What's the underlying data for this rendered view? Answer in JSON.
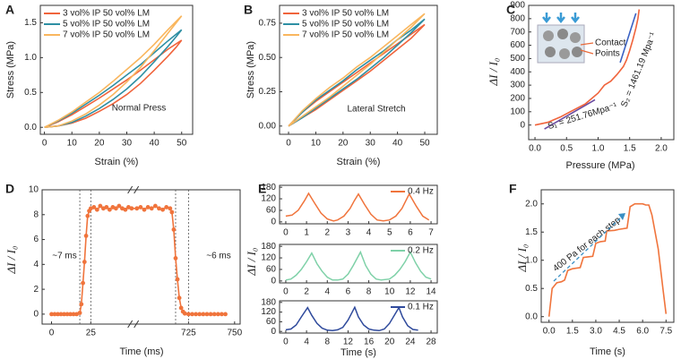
{
  "chart_data": [
    {
      "type": "line",
      "panel": "A",
      "xlabel": "Strain (%)",
      "ylabel": "Stress (MPa)",
      "x": [
        0,
        5,
        10,
        15,
        20,
        25,
        30,
        35,
        40,
        45,
        50,
        48,
        45,
        40,
        35,
        30,
        25,
        20,
        15,
        10,
        5,
        0
      ],
      "series": [
        {
          "name": "3 vol% IP  50 vol% LM",
          "color": "#f0643c",
          "values": [
            0,
            0.08,
            0.18,
            0.3,
            0.42,
            0.55,
            0.68,
            0.82,
            0.97,
            1.12,
            1.25,
            1.15,
            1.02,
            0.82,
            0.63,
            0.47,
            0.34,
            0.23,
            0.13,
            0.06,
            0.02,
            0
          ]
        },
        {
          "name": "5 vol% IP  50 vol% LM",
          "color": "#2e8fa3",
          "values": [
            0,
            0.09,
            0.2,
            0.33,
            0.46,
            0.6,
            0.75,
            0.9,
            1.07,
            1.24,
            1.4,
            1.3,
            1.16,
            0.94,
            0.73,
            0.55,
            0.4,
            0.27,
            0.16,
            0.07,
            0.02,
            0
          ]
        },
        {
          "name": "7 vol% IP  50 vol% LM",
          "color": "#f9b65e",
          "values": [
            0,
            0.1,
            0.22,
            0.36,
            0.5,
            0.66,
            0.83,
            1.0,
            1.19,
            1.4,
            1.6,
            1.5,
            1.35,
            1.1,
            0.86,
            0.65,
            0.47,
            0.32,
            0.19,
            0.09,
            0.02,
            0
          ]
        }
      ],
      "annotations": [
        {
          "text": "Normal Press",
          "color": "#3b5bb5"
        }
      ],
      "xlim": [
        -1.5,
        54
      ],
      "xticks": [
        0,
        10,
        20,
        30,
        40,
        50
      ],
      "ylim": [
        -0.1,
        1.75
      ],
      "yticks": [
        {
          "value": 0,
          "label": "0.0"
        },
        0.5,
        {
          "value": 1,
          "label": "1.0"
        },
        1.5
      ]
    },
    {
      "type": "line",
      "panel": "B",
      "xlabel": "Strain (%)",
      "ylabel": "Stress (MPa)",
      "x": [
        0,
        5,
        10,
        15,
        20,
        25,
        30,
        35,
        40,
        45,
        50,
        45,
        40,
        35,
        30,
        25,
        20,
        15,
        10,
        5,
        0
      ],
      "series": [
        {
          "name": "3 vol% IP  50 vol% LM",
          "color": "#f0643c",
          "values": [
            0,
            0.1,
            0.18,
            0.25,
            0.32,
            0.39,
            0.46,
            0.53,
            0.6,
            0.67,
            0.74,
            0.64,
            0.56,
            0.48,
            0.4,
            0.33,
            0.26,
            0.19,
            0.12,
            0.06,
            0
          ]
        },
        {
          "name": "5 vol% IP  50 vol% LM",
          "color": "#2e8fa3",
          "values": [
            0,
            0.1,
            0.19,
            0.26,
            0.33,
            0.41,
            0.48,
            0.55,
            0.63,
            0.7,
            0.78,
            0.68,
            0.59,
            0.5,
            0.42,
            0.34,
            0.27,
            0.2,
            0.13,
            0.06,
            0
          ]
        },
        {
          "name": "7 vol% IP  50 vol% LM",
          "color": "#f9b65e",
          "values": [
            0,
            0.11,
            0.2,
            0.28,
            0.35,
            0.43,
            0.5,
            0.58,
            0.66,
            0.74,
            0.82,
            0.72,
            0.63,
            0.54,
            0.45,
            0.37,
            0.29,
            0.21,
            0.14,
            0.07,
            0
          ]
        }
      ],
      "annotations": [
        {
          "text": "Lateral Stretch",
          "color": "#c0284a"
        }
      ],
      "xlim": [
        -3.3,
        54.6
      ],
      "xticks": [
        0,
        10,
        20,
        30,
        40,
        50
      ],
      "ylim": [
        -0.06,
        0.88
      ],
      "yticks": [
        {
          "value": 0,
          "label": "0.00"
        },
        {
          "value": 0.25,
          "label": "0.25"
        },
        {
          "value": 0.5,
          "label": "0.50"
        },
        {
          "value": 0.75,
          "label": "0.75"
        }
      ]
    },
    {
      "type": "line",
      "panel": "C",
      "xlabel": "Pressure (MPa)",
      "ylabel": "ΔI / I₀",
      "x": [
        0,
        0.2,
        0.4,
        0.6,
        0.8,
        1.0,
        1.1,
        1.2,
        1.3,
        1.4,
        1.45,
        1.5,
        1.55,
        1.6,
        1.63,
        1.65
      ],
      "series": [
        {
          "color": "#f0643c",
          "values": [
            0,
            20,
            60,
            110,
            160,
            240,
            300,
            330,
            380,
            440,
            490,
            560,
            640,
            730,
            800,
            870
          ]
        }
      ],
      "fits": [
        {
          "color": "#6a4ba0",
          "x": [
            0.15,
            0.95
          ],
          "values": [
            -30,
            190
          ]
        },
        {
          "color": "#3b62c4",
          "x": [
            1.35,
            1.6
          ],
          "values": [
            470,
            840
          ]
        }
      ],
      "annotations": [
        {
          "text": "S₁ = 251.76Mpa⁻¹",
          "color": "#222"
        },
        {
          "text": "S₂ = 1461.19 Mpa⁻¹",
          "color": "#222"
        },
        {
          "text": "Contact",
          "color": "#222"
        },
        {
          "text": "Points",
          "color": "#222"
        }
      ],
      "xlim": [
        -0.1,
        2.2
      ],
      "xticks": [
        {
          "value": 0,
          "label": "0.0"
        },
        0.5,
        {
          "value": 1,
          "label": "1.0"
        },
        1.5,
        {
          "value": 2,
          "label": "2.0"
        }
      ],
      "ylim": [
        -110,
        900
      ],
      "yticks": [
        0,
        100,
        200,
        300,
        400,
        500,
        600,
        700,
        800,
        900
      ]
    },
    {
      "type": "scatter-line",
      "panel": "D",
      "xlabel": "Time (ms)",
      "ylabel": "ΔI / I₀",
      "markers": true,
      "x": [
        0,
        2,
        4,
        6,
        8,
        10,
        12,
        14,
        16,
        18,
        19,
        20,
        21,
        22,
        23,
        24,
        25,
        27,
        29,
        31,
        33,
        35,
        37,
        39,
        41,
        43,
        45,
        47,
        49,
        51,
        697,
        699,
        701,
        703,
        705,
        707,
        709,
        711,
        713,
        715,
        716,
        717,
        718,
        719,
        720,
        721,
        722,
        723,
        725,
        727,
        729,
        731,
        733,
        735,
        737,
        739,
        741,
        743,
        745
      ],
      "series": [
        {
          "color": "#f0743c",
          "values": [
            0,
            0,
            0,
            0,
            0,
            0,
            0,
            0,
            0,
            0.1,
            0.8,
            2.5,
            4.2,
            6.3,
            7.9,
            8.3,
            8.5,
            8.6,
            8.4,
            8.7,
            8.5,
            8.6,
            8.4,
            8.6,
            8.5,
            8.7,
            8.5,
            8.4,
            8.6,
            8.5,
            8.5,
            8.6,
            8.4,
            8.6,
            8.5,
            8.7,
            8.5,
            8.4,
            8.6,
            8.5,
            8.2,
            6.8,
            4.5,
            2.8,
            1.3,
            0.5,
            0.2,
            0.05,
            0,
            0,
            0,
            0,
            0,
            0,
            0,
            0,
            0,
            0,
            0
          ]
        }
      ],
      "reference_lines": [
        18,
        25,
        718,
        725
      ],
      "annotations": [
        {
          "text": "~7 ms",
          "color": "#222"
        },
        {
          "text": "~6 ms",
          "color": "#222"
        }
      ],
      "xsegments": [
        [
          -6,
          52
        ],
        [
          695,
          753
        ]
      ],
      "xticks": [
        0,
        25,
        725,
        750
      ],
      "ylim": [
        -0.8,
        10
      ],
      "yticks": [
        0,
        2,
        4,
        6,
        8,
        10
      ]
    },
    {
      "type": "line",
      "panel": "E",
      "xlabel": "Time (s)",
      "ylabel": "ΔI / I₀",
      "ylim": [
        -10,
        190
      ],
      "yticks": [
        0,
        60,
        120,
        180
      ],
      "subplots": [
        {
          "name": "0.4 Hz",
          "color": "#f0743c",
          "xlim": [
            -0.3,
            7.3
          ],
          "xticks": [
            0,
            1,
            2,
            3,
            4,
            5,
            6,
            7
          ],
          "x": [
            0,
            0.3,
            0.6,
            0.9,
            1.1,
            1.4,
            1.7,
            2.0,
            2.3,
            2.5,
            2.8,
            3.1,
            3.3,
            3.5,
            3.8,
            4.1,
            4.4,
            4.7,
            5.0,
            5.3,
            5.6,
            5.95,
            6.3,
            6.6,
            6.9
          ],
          "values": [
            30,
            35,
            60,
            110,
            148,
            95,
            45,
            15,
            5,
            10,
            30,
            70,
            110,
            145,
            90,
            40,
            10,
            5,
            10,
            30,
            70,
            145,
            80,
            30,
            10
          ]
        },
        {
          "name": "0.2 Hz",
          "color": "#7fd1a8",
          "xlim": [
            -0.6,
            14.6
          ],
          "xticks": [
            0,
            2,
            4,
            6,
            8,
            10,
            12,
            14
          ],
          "x": [
            0,
            0.5,
            1,
            1.5,
            2,
            2.5,
            3,
            3.5,
            4,
            4.5,
            5,
            5.5,
            6,
            6.5,
            7.2,
            7.7,
            8.2,
            8.7,
            9.2,
            10,
            10.5,
            11,
            11.5,
            12,
            12.5,
            13,
            13.5,
            14
          ],
          "values": [
            5,
            10,
            30,
            60,
            100,
            145,
            90,
            50,
            20,
            5,
            5,
            10,
            35,
            80,
            150,
            80,
            35,
            10,
            5,
            10,
            30,
            60,
            100,
            150,
            95,
            50,
            20,
            10
          ]
        },
        {
          "name": "0.1 Hz",
          "color": "#2f4a9c",
          "xlim": [
            -1.2,
            29.2
          ],
          "xticks": [
            0,
            4,
            8,
            12,
            16,
            20,
            24,
            28
          ],
          "x": [
            0,
            1,
            2,
            3,
            4.2,
            5,
            6,
            7,
            8,
            9,
            10,
            11,
            12,
            13.3,
            14,
            15,
            16,
            17,
            18,
            19,
            20,
            21.8,
            22.5,
            23.5,
            24.5,
            25.5
          ],
          "values": [
            10,
            15,
            40,
            90,
            148,
            100,
            50,
            20,
            8,
            5,
            10,
            25,
            70,
            150,
            90,
            40,
            15,
            8,
            5,
            15,
            50,
            148,
            90,
            35,
            12,
            8
          ]
        }
      ]
    },
    {
      "type": "line",
      "panel": "F",
      "xlabel": "Time (s)",
      "ylabel": "ΔI / I₀",
      "x": [
        0,
        0.2,
        0.5,
        0.8,
        1.0,
        1.2,
        1.5,
        2.0,
        2.2,
        2.5,
        2.8,
        3.0,
        3.3,
        3.6,
        3.7,
        4.2,
        4.5,
        5.0,
        5.2,
        5.5,
        6.0,
        6.2,
        6.4,
        6.6,
        7.0,
        7.3,
        7.5
      ],
      "series": [
        {
          "color": "#f0743c",
          "values": [
            0,
            0.5,
            0.6,
            0.62,
            0.65,
            0.82,
            0.85,
            0.87,
            1.05,
            1.06,
            1.07,
            1.3,
            1.33,
            1.34,
            1.52,
            1.53,
            1.55,
            1.57,
            1.95,
            2.0,
            2.0,
            1.98,
            1.98,
            1.8,
            1.2,
            0.5,
            0.05
          ]
        }
      ],
      "annotations": [
        {
          "text": "400 Pa for each step",
          "color": "#3a8fc4"
        }
      ],
      "xlim": [
        -0.5,
        8
      ],
      "xticks": [
        {
          "value": 0,
          "label": "0.0"
        },
        1.5,
        {
          "value": 3,
          "label": "3.0"
        },
        4.5,
        {
          "value": 6,
          "label": "6.0"
        },
        7.5
      ],
      "ylim": [
        -0.1,
        2.25
      ],
      "yticks": [
        {
          "value": 0,
          "label": "0.0"
        },
        0.5,
        {
          "value": 1,
          "label": "1.0"
        },
        1.5,
        {
          "value": 2,
          "label": "2.0"
        }
      ]
    }
  ]
}
